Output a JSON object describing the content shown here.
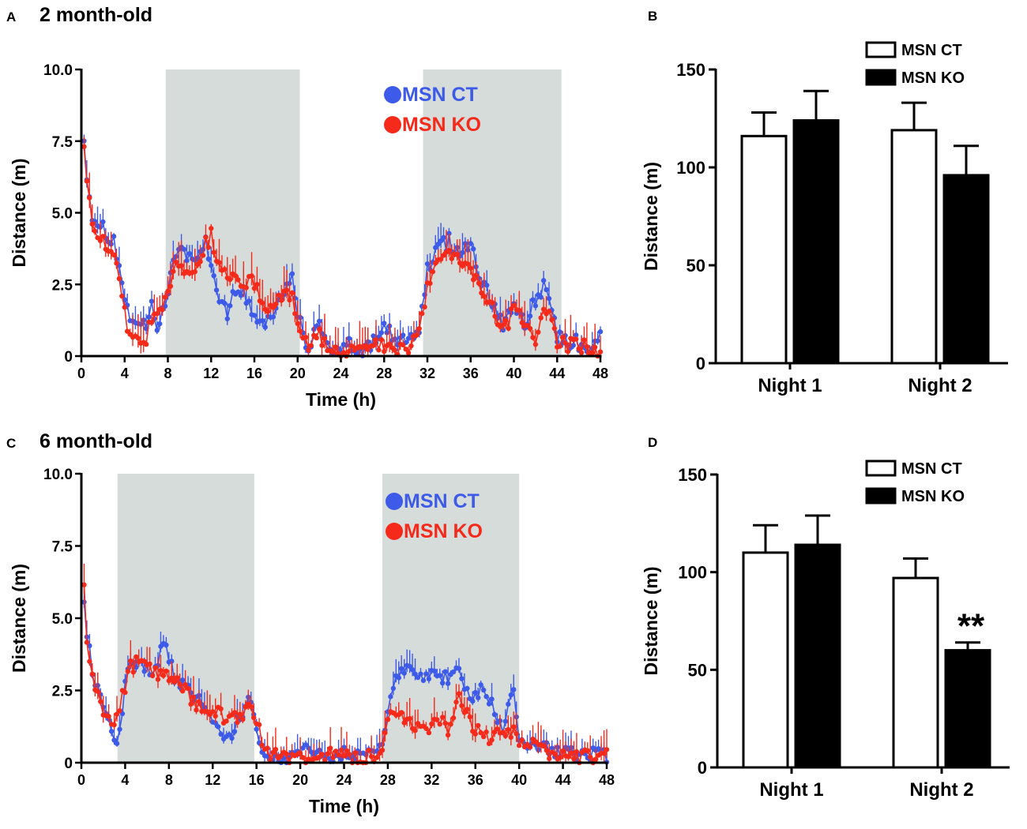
{
  "colors": {
    "ct": "#3d5ae8",
    "ko": "#f52a1a",
    "night": "#d5dcda",
    "axis": "#000000"
  },
  "chart_data": [
    {
      "panel": "A",
      "type": "line",
      "title": "2 month-old",
      "xlabel": "Time (h)",
      "ylabel": "Distance (m)",
      "xlim": [
        0,
        48
      ],
      "ylim": [
        0,
        10
      ],
      "xticks": [
        0,
        4,
        8,
        12,
        16,
        20,
        24,
        28,
        32,
        36,
        40,
        44,
        48
      ],
      "yticks": [
        0,
        2.5,
        5.0,
        7.5,
        10.0
      ],
      "ytick_labels": [
        "0",
        "2.5",
        "5.0",
        "7.5",
        "10.0"
      ],
      "night_shading": [
        [
          7.8,
          20.2
        ],
        [
          31.6,
          44.4
        ]
      ],
      "legend": [
        "MSN CT",
        "MSN KO"
      ],
      "series": [
        {
          "name": "MSN CT",
          "x0": 0.25,
          "dx": 0.25,
          "anchors": [
            [
              0.25,
              7.8
            ],
            [
              0.5,
              6.2
            ],
            [
              1,
              5.0
            ],
            [
              2,
              4.4
            ],
            [
              3,
              4.0
            ],
            [
              3.6,
              3.0
            ],
            [
              4.2,
              1.6
            ],
            [
              5,
              0.9
            ],
            [
              6,
              1.0
            ],
            [
              6.5,
              1.7
            ],
            [
              7,
              1.0
            ],
            [
              7.6,
              1.5
            ],
            [
              8,
              2.4
            ],
            [
              8.5,
              3.4
            ],
            [
              9.5,
              3.6
            ],
            [
              10.5,
              3.3
            ],
            [
              11.5,
              4.0
            ],
            [
              12.5,
              2.4
            ],
            [
              13.5,
              1.5
            ],
            [
              14.5,
              2.5
            ],
            [
              15.5,
              1.8
            ],
            [
              16.5,
              1.2
            ],
            [
              17.5,
              1.3
            ],
            [
              18.5,
              2.3
            ],
            [
              19.5,
              2.6
            ],
            [
              20.2,
              1.2
            ],
            [
              21,
              0.3
            ],
            [
              22,
              1.1
            ],
            [
              23,
              0.4
            ],
            [
              24,
              0.1
            ],
            [
              25,
              0.4
            ],
            [
              26,
              0.2
            ],
            [
              27,
              0.6
            ],
            [
              28,
              1.0
            ],
            [
              29,
              0.6
            ],
            [
              30,
              0.4
            ],
            [
              31,
              0.6
            ],
            [
              31.6,
              1.8
            ],
            [
              32,
              3.0
            ],
            [
              33,
              3.8
            ],
            [
              34,
              4.0
            ],
            [
              35,
              3.6
            ],
            [
              36,
              4.0
            ],
            [
              37,
              2.6
            ],
            [
              38,
              1.9
            ],
            [
              39,
              1.2
            ],
            [
              40,
              1.6
            ],
            [
              41,
              1.0
            ],
            [
              42,
              1.9
            ],
            [
              43,
              2.5
            ],
            [
              44,
              0.7
            ],
            [
              45,
              0.4
            ],
            [
              46,
              0.5
            ],
            [
              47,
              0.2
            ],
            [
              48,
              0.6
            ]
          ],
          "noise": 0.3,
          "err": 0.7
        },
        {
          "name": "MSN KO",
          "x0": 0.25,
          "dx": 0.25,
          "anchors": [
            [
              0.25,
              7.6
            ],
            [
              0.5,
              5.9
            ],
            [
              1,
              4.6
            ],
            [
              2,
              4.1
            ],
            [
              3,
              3.8
            ],
            [
              3.6,
              2.6
            ],
            [
              4.2,
              1.2
            ],
            [
              5,
              0.6
            ],
            [
              6,
              0.7
            ],
            [
              6.5,
              1.1
            ],
            [
              7,
              1.5
            ],
            [
              7.6,
              1.9
            ],
            [
              8,
              2.5
            ],
            [
              9,
              3.2
            ],
            [
              10,
              3.0
            ],
            [
              11,
              3.4
            ],
            [
              12,
              4.3
            ],
            [
              12.5,
              3.2
            ],
            [
              13.5,
              3.0
            ],
            [
              14.5,
              2.7
            ],
            [
              15.5,
              2.6
            ],
            [
              16.5,
              2.2
            ],
            [
              17.5,
              1.6
            ],
            [
              18.5,
              2.0
            ],
            [
              19.5,
              2.0
            ],
            [
              20.2,
              0.9
            ],
            [
              21,
              0.2
            ],
            [
              22,
              0.7
            ],
            [
              23,
              0.3
            ],
            [
              24,
              0.1
            ],
            [
              25,
              0.2
            ],
            [
              26,
              0.1
            ],
            [
              27,
              0.3
            ],
            [
              28,
              0.4
            ],
            [
              29,
              0.3
            ],
            [
              30,
              0.3
            ],
            [
              31,
              0.5
            ],
            [
              31.6,
              1.5
            ],
            [
              32,
              2.4
            ],
            [
              33,
              3.3
            ],
            [
              34,
              3.7
            ],
            [
              35,
              3.3
            ],
            [
              36,
              3.0
            ],
            [
              37,
              2.2
            ],
            [
              38,
              1.6
            ],
            [
              39,
              1.0
            ],
            [
              40,
              1.5
            ],
            [
              41,
              1.3
            ],
            [
              42,
              0.7
            ],
            [
              43,
              1.7
            ],
            [
              44,
              0.5
            ],
            [
              45,
              0.3
            ],
            [
              46,
              0.4
            ],
            [
              47,
              0.2
            ],
            [
              48,
              0.1
            ]
          ],
          "noise": 0.3,
          "err": 0.9
        }
      ]
    },
    {
      "panel": "B",
      "type": "bar",
      "ylabel": "Distance (m)",
      "ylim": [
        0,
        150
      ],
      "yticks": [
        0,
        50,
        100,
        150
      ],
      "categories": [
        "Night 1",
        "Night 2"
      ],
      "legend": [
        "MSN CT",
        "MSN KO"
      ],
      "series": [
        {
          "name": "MSN CT",
          "fill": "white",
          "values": [
            116,
            119
          ],
          "errors": [
            12,
            14
          ]
        },
        {
          "name": "MSN KO",
          "fill": "black",
          "values": [
            124,
            96
          ],
          "errors": [
            15,
            15
          ]
        }
      ],
      "annotations": []
    },
    {
      "panel": "C",
      "type": "line",
      "title": "6 month-old",
      "xlabel": "Time (h)",
      "ylabel": "Distance (m)",
      "xlim": [
        0,
        48
      ],
      "ylim": [
        0,
        10
      ],
      "xticks": [
        0,
        4,
        8,
        12,
        16,
        20,
        24,
        28,
        32,
        36,
        40,
        44,
        48
      ],
      "yticks": [
        0,
        2.5,
        5.0,
        7.5,
        10.0
      ],
      "ytick_labels": [
        "0",
        "2.5",
        "5.0",
        "7.5",
        "10.0"
      ],
      "night_shading": [
        [
          3.3,
          15.8
        ],
        [
          27.5,
          40.0
        ]
      ],
      "legend": [
        "MSN CT",
        "MSN KO"
      ],
      "series": [
        {
          "name": "MSN CT",
          "x0": 0.25,
          "dx": 0.25,
          "anchors": [
            [
              0.25,
              5.8
            ],
            [
              0.5,
              4.6
            ],
            [
              1,
              3.2
            ],
            [
              2,
              2.0
            ],
            [
              3,
              1.0
            ],
            [
              3.3,
              0.7
            ],
            [
              4,
              2.6
            ],
            [
              4.5,
              3.6
            ],
            [
              5.5,
              3.3
            ],
            [
              6.5,
              3.0
            ],
            [
              7.5,
              4.2
            ],
            [
              8.5,
              3.0
            ],
            [
              9.5,
              2.7
            ],
            [
              10.5,
              2.2
            ],
            [
              11.5,
              2.0
            ],
            [
              12.5,
              1.2
            ],
            [
              13.5,
              0.8
            ],
            [
              14.5,
              1.6
            ],
            [
              15.5,
              2.2
            ],
            [
              16.5,
              0.3
            ],
            [
              17,
              0.0
            ],
            [
              18,
              0.2
            ],
            [
              19,
              0.1
            ],
            [
              20,
              0.2
            ],
            [
              21,
              0.6
            ],
            [
              22,
              0.3
            ],
            [
              23,
              0.2
            ],
            [
              24,
              0.3
            ],
            [
              25,
              0.2
            ],
            [
              26,
              0.3
            ],
            [
              27,
              0.5
            ],
            [
              27.5,
              0.8
            ],
            [
              28.5,
              2.6
            ],
            [
              29.5,
              3.3
            ],
            [
              30.5,
              3.0
            ],
            [
              31.5,
              2.9
            ],
            [
              32.5,
              3.2
            ],
            [
              33.5,
              2.8
            ],
            [
              34.5,
              3.3
            ],
            [
              35.5,
              2.0
            ],
            [
              36.5,
              2.5
            ],
            [
              37.5,
              2.0
            ],
            [
              38.5,
              1.2
            ],
            [
              39.5,
              2.4
            ],
            [
              40,
              1.0
            ],
            [
              41,
              0.5
            ],
            [
              42,
              0.6
            ],
            [
              43,
              0.3
            ],
            [
              44,
              0.4
            ],
            [
              45,
              0.3
            ],
            [
              46,
              0.2
            ],
            [
              47,
              0.4
            ],
            [
              48,
              0.2
            ]
          ],
          "noise": 0.25,
          "err": 0.6
        },
        {
          "name": "MSN KO",
          "x0": 0.25,
          "dx": 0.25,
          "anchors": [
            [
              0.25,
              6.4
            ],
            [
              0.5,
              4.2
            ],
            [
              1,
              3.0
            ],
            [
              2,
              1.9
            ],
            [
              3,
              1.4
            ],
            [
              3.3,
              1.7
            ],
            [
              4,
              2.6
            ],
            [
              4.5,
              3.3
            ],
            [
              5.5,
              3.6
            ],
            [
              6.5,
              3.1
            ],
            [
              7.5,
              3.0
            ],
            [
              8.5,
              2.9
            ],
            [
              9.5,
              2.5
            ],
            [
              10.5,
              2.0
            ],
            [
              11.5,
              1.9
            ],
            [
              12.5,
              1.7
            ],
            [
              13.5,
              1.5
            ],
            [
              14.5,
              1.6
            ],
            [
              15.5,
              2.0
            ],
            [
              16.5,
              0.8
            ],
            [
              17,
              0.3
            ],
            [
              18,
              0.2
            ],
            [
              19,
              0.1
            ],
            [
              20,
              0.1
            ],
            [
              21,
              0.2
            ],
            [
              22,
              0.2
            ],
            [
              23,
              0.3
            ],
            [
              24,
              0.2
            ],
            [
              25,
              0.1
            ],
            [
              26,
              0.2
            ],
            [
              27,
              0.3
            ],
            [
              27.5,
              0.6
            ],
            [
              28.5,
              1.9
            ],
            [
              29.5,
              1.6
            ],
            [
              30.5,
              1.3
            ],
            [
              31.5,
              1.0
            ],
            [
              32.5,
              1.5
            ],
            [
              33.5,
              1.2
            ],
            [
              34.5,
              2.2
            ],
            [
              35.5,
              1.4
            ],
            [
              36.5,
              1.0
            ],
            [
              37.5,
              0.8
            ],
            [
              38.5,
              1.2
            ],
            [
              39.5,
              1.0
            ],
            [
              40,
              0.8
            ],
            [
              41,
              0.6
            ],
            [
              42,
              0.7
            ],
            [
              43,
              0.2
            ],
            [
              44,
              0.4
            ],
            [
              45,
              0.2
            ],
            [
              46,
              0.2
            ],
            [
              47,
              0.1
            ],
            [
              48,
              0.3
            ]
          ],
          "noise": 0.25,
          "err": 0.8
        }
      ]
    },
    {
      "panel": "D",
      "type": "bar",
      "ylabel": "Distance (m)",
      "ylim": [
        0,
        150
      ],
      "yticks": [
        0,
        50,
        100,
        150
      ],
      "categories": [
        "Night 1",
        "Night 2"
      ],
      "legend": [
        "MSN CT",
        "MSN KO"
      ],
      "series": [
        {
          "name": "MSN CT",
          "fill": "white",
          "values": [
            110,
            97
          ],
          "errors": [
            14,
            10
          ]
        },
        {
          "name": "MSN KO",
          "fill": "black",
          "values": [
            114,
            60
          ],
          "errors": [
            15,
            4
          ]
        }
      ],
      "annotations": [
        {
          "text": "**",
          "category": "Night 2",
          "series": "MSN KO"
        }
      ]
    }
  ]
}
